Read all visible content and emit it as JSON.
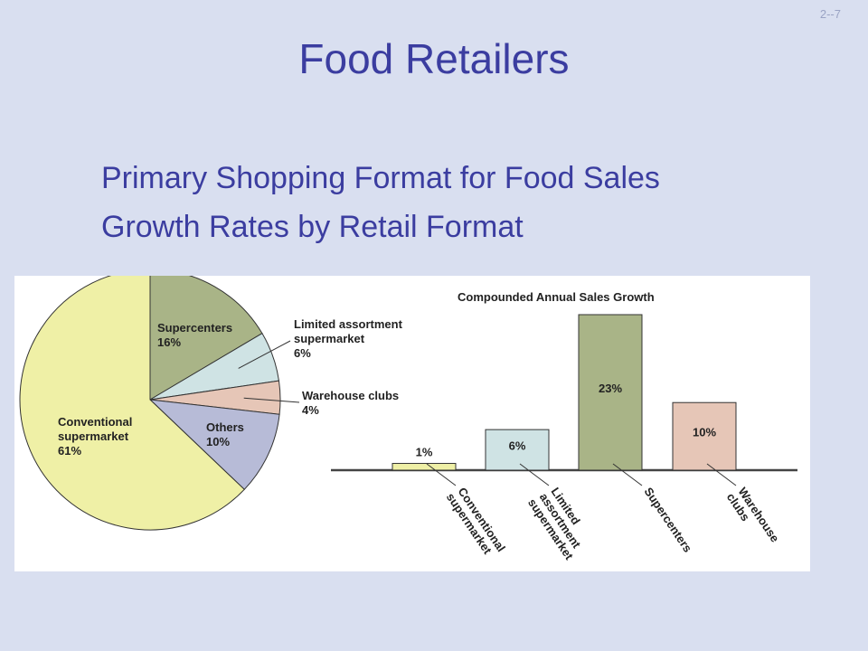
{
  "slide": {
    "number": "2--7",
    "title": "Food Retailers",
    "bullets": [
      "Primary Shopping Format for Food Sales",
      "Growth Rates by Retail Format"
    ]
  },
  "chart_data": [
    {
      "type": "pie",
      "slices": [
        {
          "lines": [
            "Supercenters",
            "16%"
          ],
          "value": 16,
          "color": "#a9b487"
        },
        {
          "lines": [
            "Limited assortment",
            "supermarket",
            "6%"
          ],
          "value": 6,
          "color": "#cfe3e4"
        },
        {
          "lines": [
            "Warehouse clubs",
            "4%"
          ],
          "value": 4,
          "color": "#e6c6b7"
        },
        {
          "lines": [
            "Others",
            "10%"
          ],
          "value": 10,
          "color": "#b7bbd7"
        },
        {
          "lines": [
            "Conventional",
            "supermarket",
            "61%"
          ],
          "value": 61,
          "color": "#eff0a6"
        }
      ]
    },
    {
      "type": "bar",
      "title": "Compounded Annual Sales Growth",
      "categories": [
        {
          "lines": [
            "Conventional",
            "supermarket"
          ]
        },
        {
          "lines": [
            "Limited",
            "assortment",
            "supermarket"
          ]
        },
        {
          "lines": [
            "Supercenters"
          ]
        },
        {
          "lines": [
            "Warehouse",
            "clubs"
          ]
        }
      ],
      "values": [
        1,
        6,
        23,
        10
      ],
      "value_labels": [
        "1%",
        "6%",
        "23%",
        "10%"
      ],
      "colors": [
        "#eff0a6",
        "#cfe3e4",
        "#a9b487",
        "#e6c6b7"
      ],
      "ylim": [
        0,
        23
      ]
    }
  ]
}
